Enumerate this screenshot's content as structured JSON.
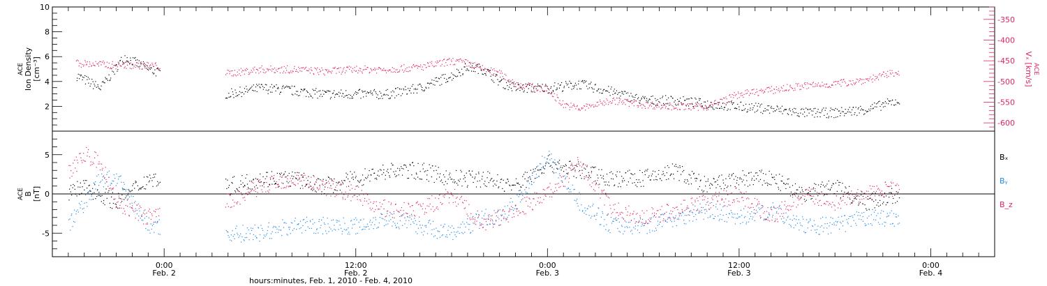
{
  "chart_data": [
    {
      "type": "scatter",
      "panel": "ion-density",
      "ylabel_lines": [
        "ACE",
        "Ion Density",
        "[cm⁻³]"
      ],
      "ylim": [
        0,
        10
      ],
      "yticks": [
        2,
        4,
        6,
        8,
        10
      ],
      "y2label_lines": [
        "ACE",
        "Vₓ [km/s]"
      ],
      "y2lim": [
        -620,
        -320
      ],
      "y2ticks": [
        -350,
        -400,
        -450,
        -500,
        -550,
        -600
      ],
      "colors": {
        "density": "#000000",
        "vx": "#e0245e"
      },
      "series": [
        {
          "key": "density",
          "axis": "left",
          "x": [
            -5.5,
            -4,
            -2.5,
            -1,
            4,
            6,
            8,
            10,
            12,
            14,
            16,
            18,
            19,
            20,
            21,
            22,
            24,
            26,
            28,
            30,
            32,
            34,
            36,
            38,
            40,
            42,
            44,
            46
          ],
          "y": [
            4.5,
            3.5,
            6,
            5,
            3,
            3.5,
            3.3,
            3,
            3,
            3,
            3.5,
            4.5,
            5.2,
            5,
            4,
            3.5,
            3.5,
            3.8,
            3.2,
            2.5,
            2.5,
            2.2,
            2,
            1.8,
            1.5,
            1.5,
            1.8,
            2.5
          ]
        },
        {
          "key": "vx",
          "axis": "right",
          "x": [
            -5.5,
            -3,
            -1,
            4,
            6,
            8,
            10,
            12,
            14,
            16,
            18,
            19,
            20,
            21,
            22,
            24,
            25,
            26,
            28,
            30,
            32,
            34,
            36,
            38,
            40,
            42,
            44,
            46
          ],
          "y": [
            -455,
            -460,
            -460,
            -480,
            -470,
            -470,
            -475,
            -470,
            -470,
            -465,
            -450,
            -455,
            -470,
            -480,
            -505,
            -520,
            -555,
            -565,
            -545,
            -555,
            -560,
            -560,
            -530,
            -520,
            -510,
            -505,
            -495,
            -475
          ]
        }
      ]
    },
    {
      "type": "scatter",
      "panel": "magnetic-field",
      "ylabel_lines": [
        "ACE",
        "B",
        "[nT]"
      ],
      "ylim": [
        -8,
        8
      ],
      "yticks": [
        -5,
        0,
        5
      ],
      "zero_line": true,
      "legend_labels": [
        "Bₓ",
        "Bᵧ",
        "B_z"
      ],
      "legend_colors": [
        "#000000",
        "#1e88e5",
        "#e0245e"
      ],
      "series": [
        {
          "name": "Bₓ",
          "color": "#000000",
          "x": [
            -6,
            -5,
            -4,
            -3,
            -1,
            4,
            6,
            8,
            10,
            12,
            14,
            16,
            18,
            20,
            22,
            24,
            26,
            28,
            30,
            32,
            34,
            36,
            38,
            40,
            42,
            44,
            46
          ],
          "y": [
            0,
            1,
            0,
            -1,
            2,
            1,
            2,
            2,
            1,
            2,
            3,
            3,
            2,
            2,
            1,
            4,
            3,
            2,
            2,
            3,
            1,
            2,
            2,
            0,
            1,
            -1,
            0
          ]
        },
        {
          "name": "Bᵧ",
          "color": "#1e88e5",
          "x": [
            -6,
            -5,
            -4,
            -3,
            -1,
            4,
            6,
            8,
            10,
            12,
            14,
            16,
            18,
            20,
            21,
            22,
            24,
            26,
            28,
            30,
            32,
            34,
            36,
            38,
            40,
            42,
            44,
            46
          ],
          "y": [
            -4,
            -1,
            2,
            2,
            -4,
            -5,
            -5,
            -4,
            -4,
            -4,
            -3,
            -4,
            -5,
            -3,
            -3,
            -1,
            5,
            -1,
            -4,
            -4,
            -3,
            -2,
            -3,
            -2,
            -4,
            -4,
            -3,
            -3
          ]
        },
        {
          "name": "B_z",
          "color": "#e0245e",
          "x": [
            -6,
            -5,
            -4,
            -3,
            -1,
            4,
            6,
            8,
            10,
            12,
            14,
            16,
            18,
            20,
            22,
            24,
            26,
            28,
            30,
            32,
            34,
            36,
            38,
            40,
            42,
            44,
            46
          ],
          "y": [
            3,
            5,
            4,
            -1,
            -3,
            -1,
            1,
            2,
            1,
            0,
            -2,
            -2,
            0,
            -4,
            -2,
            0,
            4,
            -2,
            -3,
            -2,
            -1,
            0,
            -3,
            0,
            -1,
            0,
            1
          ]
        }
      ]
    }
  ],
  "xaxis": {
    "xlim": [
      -7,
      52
    ],
    "ticks": [
      {
        "x": 0,
        "time": "0:00",
        "date": "Feb. 2"
      },
      {
        "x": 12,
        "time": "12:00",
        "date": "Feb. 2"
      },
      {
        "x": 24,
        "time": "0:00",
        "date": "Feb. 3"
      },
      {
        "x": 36,
        "time": "12:00",
        "date": "Feb. 3"
      },
      {
        "x": 48,
        "time": "0:00",
        "date": "Feb. 4"
      }
    ],
    "xlabel": "hours:minutes, Feb.  1, 2010 - Feb.  4, 2010"
  }
}
